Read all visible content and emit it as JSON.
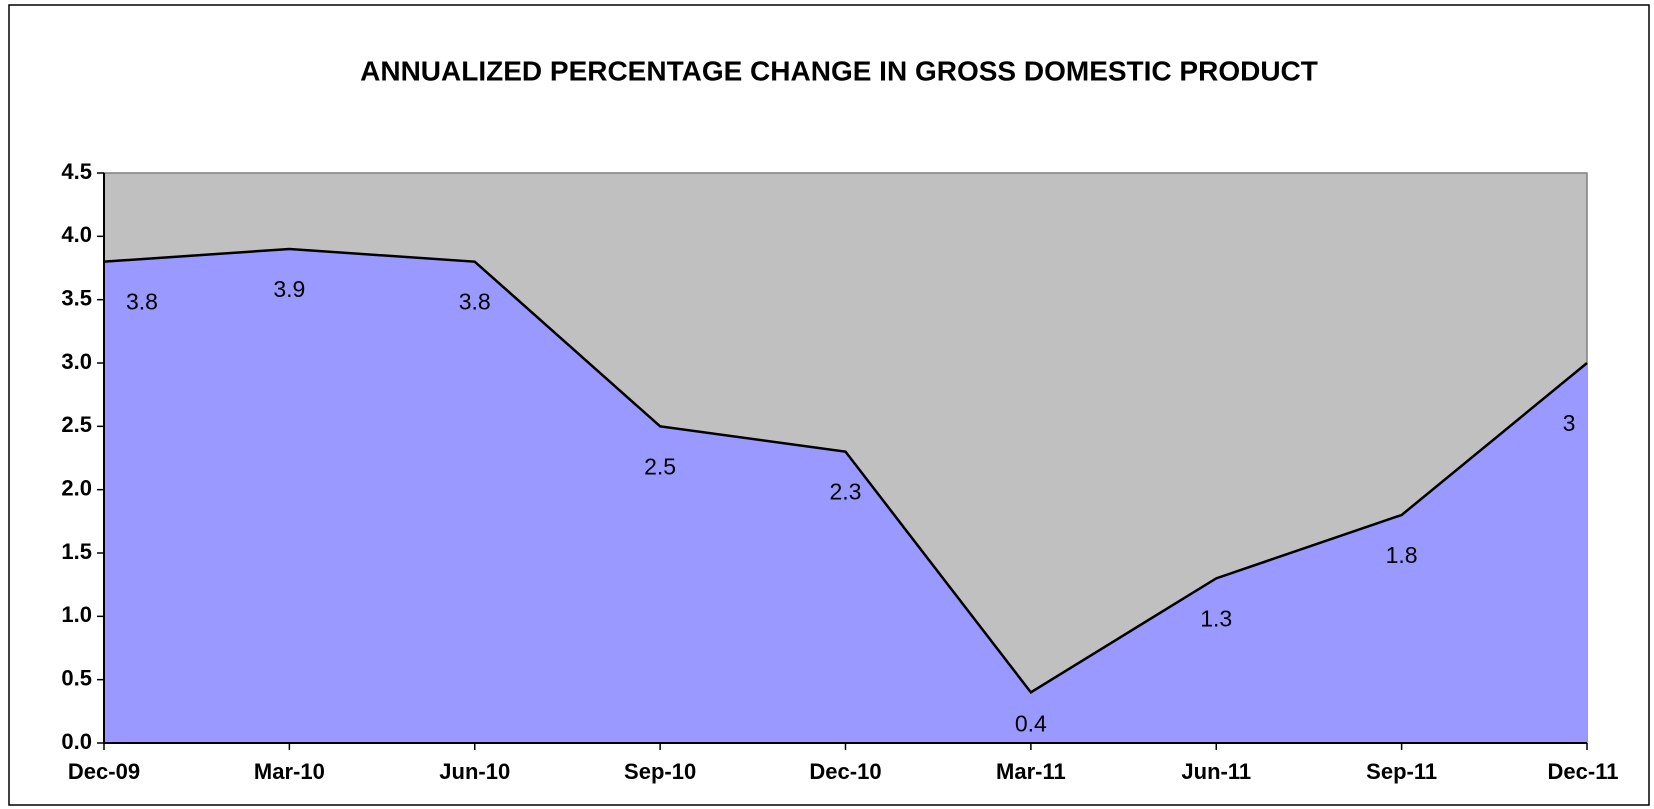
{
  "chart_data": {
    "type": "area",
    "title": "ANNUALIZED  PERCENTAGE CHANGE IN GROSS DOMESTIC PRODUCT",
    "categories": [
      "Dec-09",
      "Mar-10",
      "Jun-10",
      "Sep-10",
      "Dec-10",
      "Mar-11",
      "Jun-11",
      "Sep-11",
      "Dec-11"
    ],
    "values": [
      3.8,
      3.9,
      3.8,
      2.5,
      2.3,
      0.4,
      1.3,
      1.8,
      3
    ],
    "color": "#9999ff",
    "line_color": "#000000",
    "plot_background": "#c0c0c0",
    "ylim": [
      0,
      4.5
    ],
    "yticks": [
      {
        "value": 0,
        "label": "0.0"
      },
      0.5,
      {
        "value": 1,
        "label": "1.0"
      },
      1.5,
      {
        "value": 2,
        "label": "2.0"
      },
      2.5,
      {
        "value": 3,
        "label": "3.0"
      },
      3.5,
      {
        "value": 4,
        "label": "4.0"
      },
      4.5
    ]
  }
}
